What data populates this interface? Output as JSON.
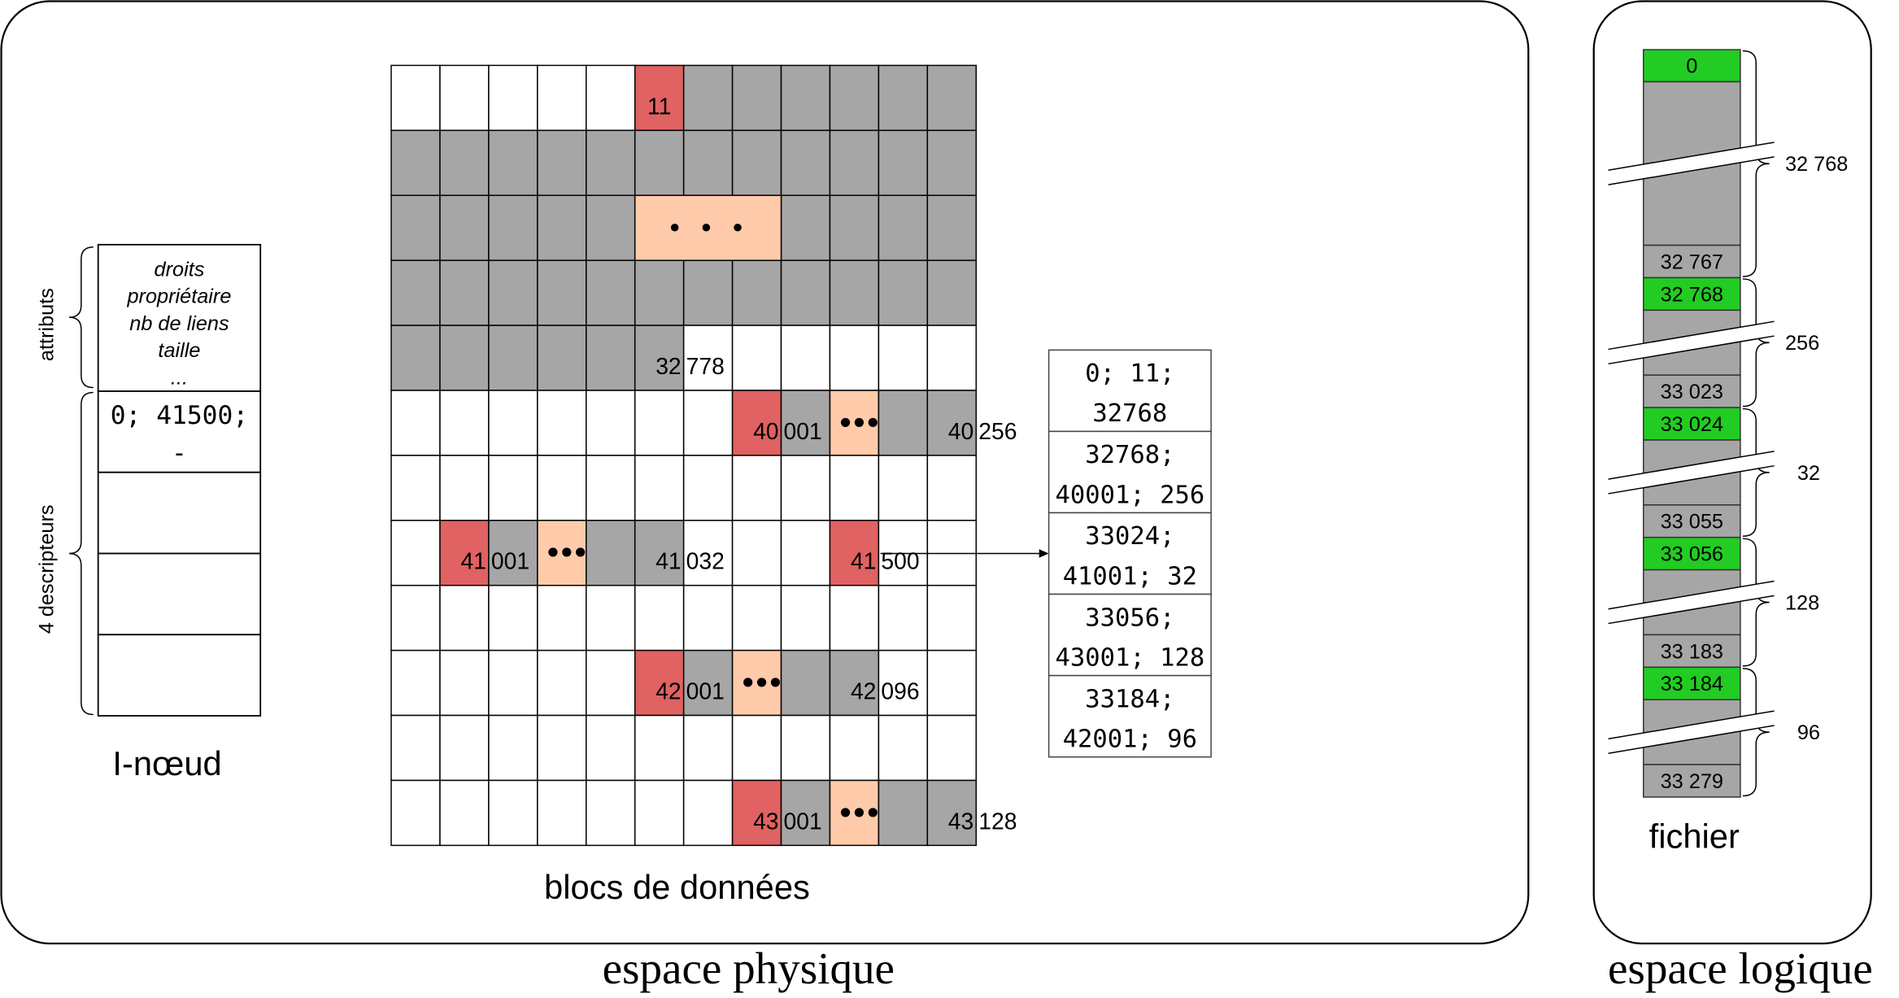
{
  "physical_space": {
    "title": "espace physique",
    "inode": {
      "label": "I-nœud",
      "attributes_label": "attributs",
      "descriptors_label": "4 descripteurs",
      "attributes": [
        "droits",
        "propriétaire",
        "nb de liens",
        "taille",
        "..."
      ],
      "descriptors": [
        [
          "0; 41500;",
          "-"
        ],
        [],
        [],
        []
      ]
    },
    "data_blocks": {
      "label": "blocs de données",
      "palette": [
        "#ffffff",
        "#a6a6a6",
        "#e06262",
        "#ffcbaa"
      ],
      "grid": [
        [
          0,
          0,
          0,
          0,
          0,
          2,
          1,
          1,
          1,
          1,
          1,
          1
        ],
        [
          1,
          1,
          1,
          1,
          1,
          1,
          1,
          1,
          1,
          1,
          1,
          1
        ],
        [
          1,
          1,
          1,
          1,
          1,
          3,
          3,
          3,
          1,
          1,
          1,
          1
        ],
        [
          1,
          1,
          1,
          1,
          1,
          1,
          1,
          1,
          1,
          1,
          1,
          1
        ],
        [
          1,
          1,
          1,
          1,
          1,
          1,
          0,
          0,
          0,
          0,
          0,
          0
        ],
        [
          0,
          0,
          0,
          0,
          0,
          0,
          0,
          2,
          1,
          3,
          1,
          1
        ],
        [
          0,
          0,
          0,
          0,
          0,
          0,
          0,
          0,
          0,
          0,
          0,
          0
        ],
        [
          0,
          2,
          1,
          3,
          1,
          1,
          0,
          0,
          0,
          2,
          0,
          0
        ],
        [
          0,
          0,
          0,
          0,
          0,
          0,
          0,
          0,
          0,
          0,
          0,
          0
        ],
        [
          0,
          0,
          0,
          0,
          0,
          2,
          1,
          3,
          1,
          1,
          0,
          0
        ],
        [
          0,
          0,
          0,
          0,
          0,
          0,
          0,
          0,
          0,
          0,
          0,
          0
        ],
        [
          0,
          0,
          0,
          0,
          0,
          0,
          0,
          2,
          1,
          3,
          1,
          1
        ]
      ],
      "merged_elided": [
        {
          "row": 2,
          "col": 5,
          "span": 3,
          "text": "• • •"
        }
      ],
      "elided_text": "•••",
      "block_labels": [
        {
          "row": 0,
          "col": 5,
          "text": "11"
        },
        {
          "row": 4,
          "col": 5,
          "text": "32 778"
        },
        {
          "row": 5,
          "col": 7,
          "text": "40 001"
        },
        {
          "row": 5,
          "col": 11,
          "text": "40 256"
        },
        {
          "row": 7,
          "col": 1,
          "text": "41 001"
        },
        {
          "row": 7,
          "col": 5,
          "text": "41 032"
        },
        {
          "row": 7,
          "col": 9,
          "text": "41 500"
        },
        {
          "row": 9,
          "col": 5,
          "text": "42 001"
        },
        {
          "row": 9,
          "col": 9,
          "text": "42 096"
        },
        {
          "row": 11,
          "col": 7,
          "text": "43 001"
        },
        {
          "row": 11,
          "col": 11,
          "text": "43 128"
        }
      ]
    },
    "extent_table": [
      [
        "0; 11;",
        "32768"
      ],
      [
        "32768;",
        "40001; 256"
      ],
      [
        "33024;",
        "41001; 32"
      ],
      [
        "33056;",
        "43001; 128"
      ],
      [
        "33184;",
        "42001; 96"
      ]
    ]
  },
  "logical_space": {
    "title": "espace logique",
    "file_label": "fichier",
    "colors": {
      "start": "#22cc22",
      "body": "#a6a6a6"
    },
    "segments": [
      {
        "start": "0",
        "end": "32 767",
        "count": "32 768"
      },
      {
        "start": "32 768",
        "end": "33 023",
        "count": "256"
      },
      {
        "start": "33 024",
        "end": "33 055",
        "count": "32"
      },
      {
        "start": "33 056",
        "end": "33 183",
        "count": "128"
      },
      {
        "start": "33 184",
        "end": "33 279",
        "count": "96"
      }
    ]
  }
}
